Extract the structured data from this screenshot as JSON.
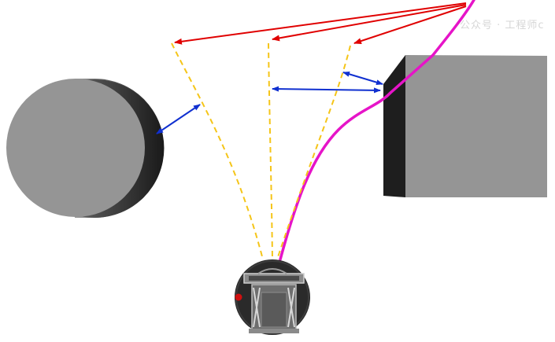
{
  "watermark": {
    "text": "公众号 · 工程师c"
  },
  "colors": {
    "background": "#ffffff",
    "obstacle_face": "#959595",
    "obstacle_side": "#1e1e1e",
    "cylinder_edge_dark": "#202020",
    "candidate_path": "#f5c518",
    "selected_path": "#e614c8",
    "goal_arrow": "#e00000",
    "clearance_arrow": "#1030d0",
    "robot_body": "#2a2a2a",
    "robot_frame": "#6e6e6e",
    "robot_marker": "#d01010"
  },
  "icons": {
    "cylinder": "cylinder-obstacle",
    "box": "box-obstacle",
    "robot": "robot-top-view"
  }
}
